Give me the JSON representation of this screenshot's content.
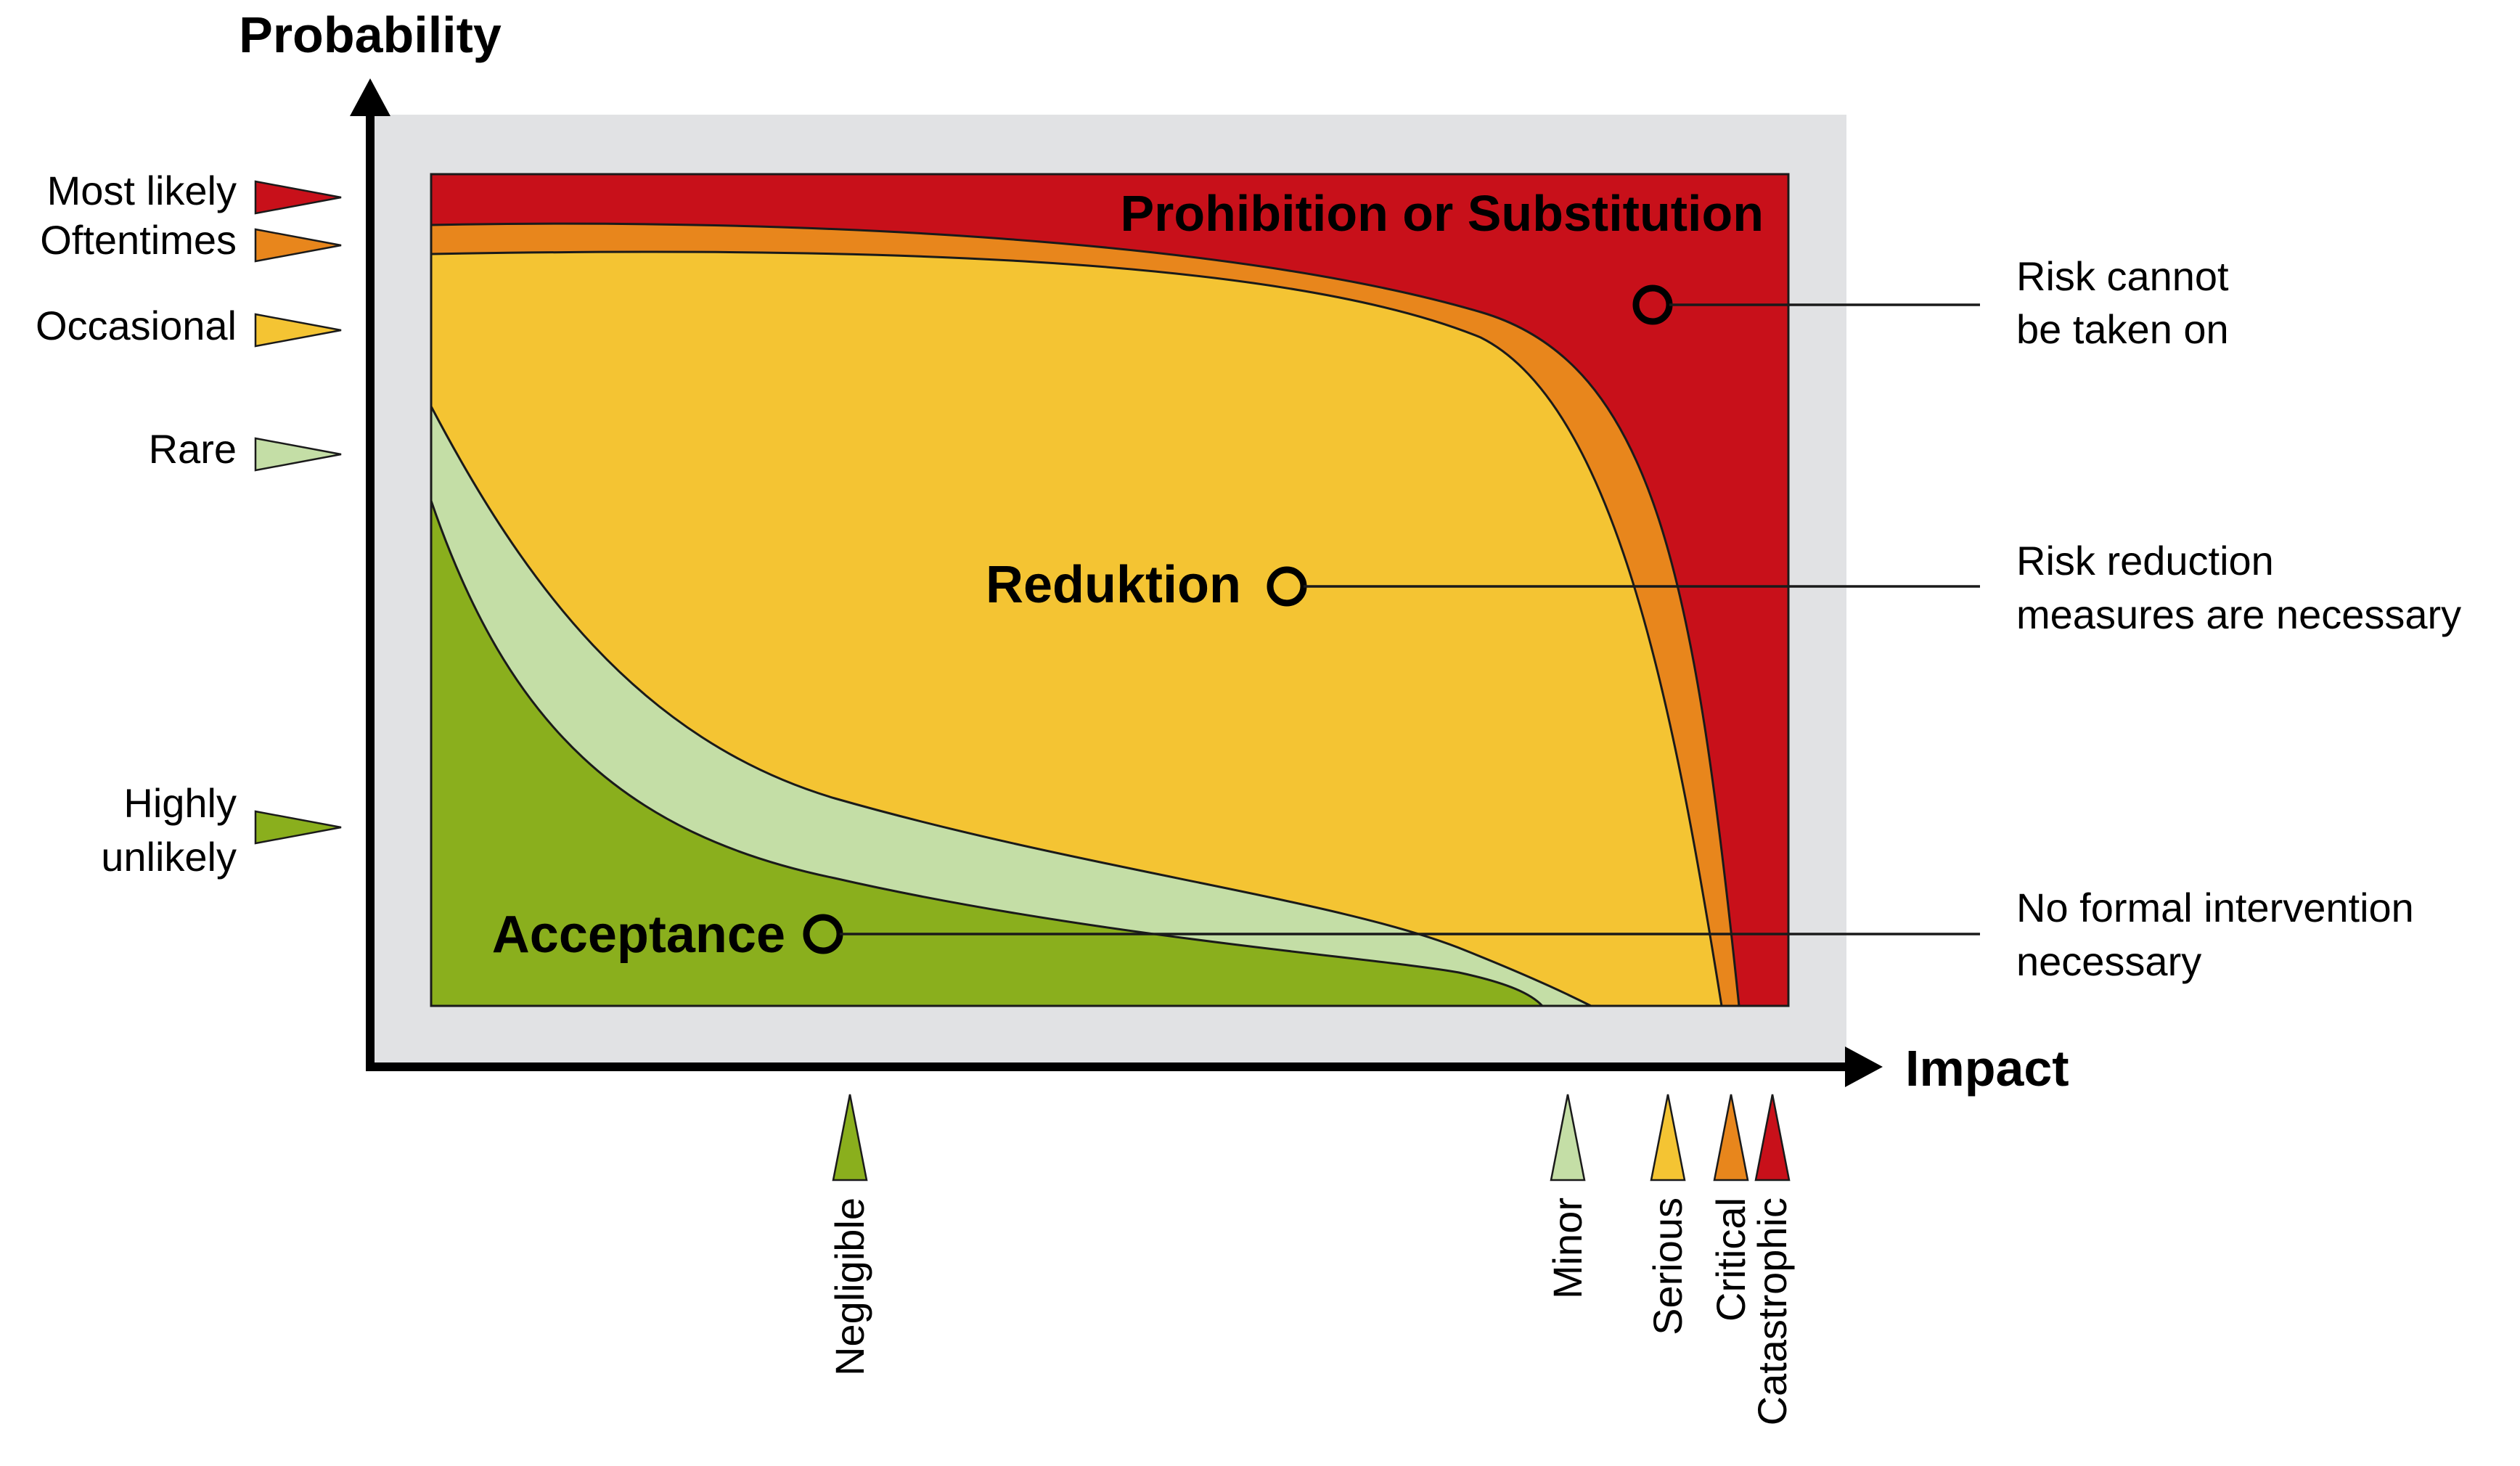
{
  "axes": {
    "y_title": "Probability",
    "x_title": "Impact"
  },
  "probability_levels": [
    {
      "label": "Most likely",
      "color": "#c8101a"
    },
    {
      "label": "Oftentimes",
      "color": "#e8861c"
    },
    {
      "label": "Occasional",
      "color": "#f4c433"
    },
    {
      "label": "Rare",
      "color": "#c4dea6"
    },
    {
      "label": "Highly",
      "label2": "unlikely",
      "color": "#8aaf1d"
    }
  ],
  "impact_levels": [
    {
      "label": "Negligible",
      "color": "#8aaf1d"
    },
    {
      "label": "Minor",
      "color": "#c4dea6"
    },
    {
      "label": "Serious",
      "color": "#f4c433"
    },
    {
      "label": "Critical",
      "color": "#e8861c"
    },
    {
      "label": "Catastrophic",
      "color": "#c8101a"
    }
  ],
  "zones": {
    "prohibition": {
      "label": "Prohibition or Substitution",
      "color": "#c8101a"
    },
    "oftentimes_band": {
      "color": "#e8861c"
    },
    "reduction": {
      "label": "Reduktion",
      "color": "#f4c433"
    },
    "rare_band": {
      "color": "#c4dea6"
    },
    "acceptance": {
      "label": "Acceptance",
      "color": "#8aaf1d"
    }
  },
  "callouts": [
    {
      "line1": "Risk cannot",
      "line2": "be taken on"
    },
    {
      "line1": "Risk reduction",
      "line2": "measures are necessary"
    },
    {
      "line1": "No formal intervention",
      "line2": "necessary"
    }
  ],
  "colors": {
    "background_panel": "#e1e2e4",
    "axis": "#000000"
  }
}
